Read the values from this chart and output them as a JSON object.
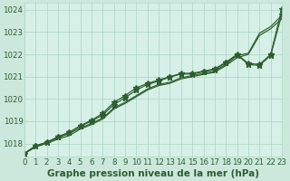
{
  "title": "Graphe pression niveau de la mer (hPa)",
  "bg_outer": "#cce8dd",
  "bg_plot": "#d6f0e8",
  "grid_color": "#b0d8c8",
  "line_color": "#2d5e2d",
  "xlim": [
    0,
    23
  ],
  "ylim": [
    1017.4,
    1024.3
  ],
  "yticks": [
    1018,
    1019,
    1020,
    1021,
    1022,
    1023,
    1024
  ],
  "xticks": [
    0,
    1,
    2,
    3,
    4,
    5,
    6,
    7,
    8,
    9,
    10,
    11,
    12,
    13,
    14,
    15,
    16,
    17,
    18,
    19,
    20,
    21,
    22,
    23
  ],
  "series_plain": [
    [
      1017.55,
      1017.85,
      1018.05,
      1018.25,
      1018.45,
      1018.7,
      1018.9,
      1019.15,
      1019.6,
      1019.85,
      1020.15,
      1020.45,
      1020.65,
      1020.75,
      1020.95,
      1021.05,
      1021.15,
      1021.25,
      1021.55,
      1021.95,
      1022.05,
      1022.95,
      1023.25,
      1023.75
    ],
    [
      1017.55,
      1017.85,
      1018.0,
      1018.2,
      1018.35,
      1018.65,
      1018.85,
      1019.1,
      1019.55,
      1019.8,
      1020.1,
      1020.4,
      1020.6,
      1020.7,
      1020.9,
      1021.0,
      1021.1,
      1021.2,
      1021.5,
      1021.85,
      1022.0,
      1022.85,
      1023.15,
      1023.6
    ]
  ],
  "series_marked": [
    [
      1017.55,
      1017.9,
      1018.05,
      1018.3,
      1018.5,
      1018.8,
      1019.05,
      1019.35,
      1019.85,
      1020.15,
      1020.5,
      1020.7,
      1020.85,
      1021.0,
      1021.15,
      1021.15,
      1021.25,
      1021.35,
      1021.65,
      1022.0,
      1021.6,
      1021.55,
      1022.0,
      1024.05
    ],
    [
      1017.55,
      1017.9,
      1018.05,
      1018.3,
      1018.5,
      1018.78,
      1019.0,
      1019.28,
      1019.75,
      1020.05,
      1020.4,
      1020.65,
      1020.8,
      1020.98,
      1021.12,
      1021.12,
      1021.22,
      1021.32,
      1021.62,
      1021.98,
      1021.55,
      1021.5,
      1021.95,
      1023.8
    ]
  ],
  "marker": "*",
  "marker_size": 4.5,
  "title_fontsize": 7.5,
  "tick_fontsize": 6.2
}
